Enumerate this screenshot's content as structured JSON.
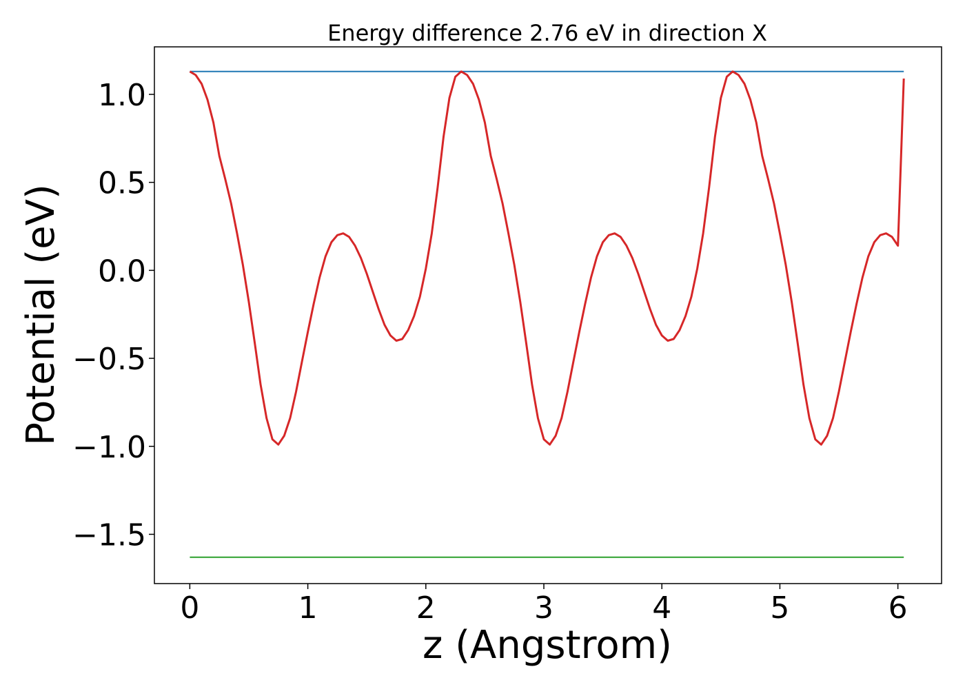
{
  "chart_data": {
    "type": "line",
    "title": "Energy difference 2.76 eV in direction X",
    "xlabel": "z (Angstrom)",
    "ylabel": "Potential (eV)",
    "xlim": [
      -0.3,
      6.37
    ],
    "ylim": [
      -1.78,
      1.27
    ],
    "x_ticks": [
      0,
      1,
      2,
      3,
      4,
      5,
      6
    ],
    "x_tick_labels": [
      "0",
      "1",
      "2",
      "3",
      "4",
      "5",
      "6"
    ],
    "y_ticks": [
      1.0,
      0.5,
      0.0,
      -0.5,
      -1.0,
      -1.5
    ],
    "y_tick_labels": [
      "1.0",
      "0.5",
      "0.0",
      "−0.5",
      "−1.0",
      "−1.5"
    ],
    "grid": false,
    "series": [
      {
        "color": "#1f77b4",
        "x": [
          0,
          6.05
        ],
        "y": [
          1.13,
          1.13
        ]
      },
      {
        "color": "#2ca02c",
        "x": [
          0,
          6.05
        ],
        "y": [
          -1.63,
          -1.63
        ]
      },
      {
        "color": "#d62728",
        "x": [
          0,
          0.05,
          0.1,
          0.15,
          0.2,
          0.25,
          0.3,
          0.35,
          0.4,
          0.45,
          0.5,
          0.55,
          0.6,
          0.65,
          0.7,
          0.75,
          0.8,
          0.85,
          0.9,
          0.95,
          1.0,
          1.05,
          1.1,
          1.15,
          1.2,
          1.25,
          1.3,
          1.35,
          1.4,
          1.45,
          1.5,
          1.55,
          1.6,
          1.65,
          1.7,
          1.75,
          1.8,
          1.85,
          1.9,
          1.95,
          2.0,
          2.05,
          2.1,
          2.15,
          2.2,
          2.25,
          2.3,
          2.35,
          2.4,
          2.45,
          2.5,
          2.55,
          2.6,
          2.65,
          2.7,
          2.75,
          2.8,
          2.85,
          2.9,
          2.95,
          3.0,
          3.05,
          3.1,
          3.15,
          3.2,
          3.25,
          3.3,
          3.35,
          3.4,
          3.45,
          3.5,
          3.55,
          3.6,
          3.65,
          3.7,
          3.75,
          3.8,
          3.85,
          3.9,
          3.95,
          4.0,
          4.05,
          4.1,
          4.15,
          4.2,
          4.25,
          4.3,
          4.35,
          4.4,
          4.45,
          4.5,
          4.55,
          4.6,
          4.65,
          4.7,
          4.75,
          4.8,
          4.85,
          4.9,
          4.95,
          5.0,
          5.05,
          5.1,
          5.15,
          5.2,
          5.25,
          5.3,
          5.35,
          5.4,
          5.45,
          5.5,
          5.55,
          5.6,
          5.65,
          5.7,
          5.75,
          5.8,
          5.85,
          5.9,
          5.95,
          6.0,
          6.05
        ],
        "y": [
          1.13,
          1.11,
          1.06,
          0.97,
          0.84,
          0.65,
          0.52,
          0.38,
          0.21,
          0.03,
          -0.18,
          -0.41,
          -0.65,
          -0.84,
          -0.96,
          -0.99,
          -0.94,
          -0.84,
          -0.69,
          -0.52,
          -0.35,
          -0.19,
          -0.04,
          0.08,
          0.16,
          0.2,
          0.21,
          0.19,
          0.14,
          0.07,
          -0.02,
          -0.12,
          -0.22,
          -0.31,
          -0.37,
          -0.4,
          -0.39,
          -0.34,
          -0.26,
          -0.15,
          0.01,
          0.21,
          0.47,
          0.76,
          0.98,
          1.1,
          1.13,
          1.11,
          1.06,
          0.97,
          0.84,
          0.65,
          0.52,
          0.38,
          0.21,
          0.03,
          -0.18,
          -0.41,
          -0.65,
          -0.84,
          -0.96,
          -0.99,
          -0.94,
          -0.84,
          -0.69,
          -0.52,
          -0.35,
          -0.19,
          -0.04,
          0.08,
          0.16,
          0.2,
          0.21,
          0.19,
          0.14,
          0.07,
          -0.02,
          -0.12,
          -0.22,
          -0.31,
          -0.37,
          -0.4,
          -0.39,
          -0.34,
          -0.26,
          -0.15,
          0.01,
          0.21,
          0.47,
          0.76,
          0.98,
          1.1,
          1.13,
          1.11,
          1.06,
          0.97,
          0.84,
          0.65,
          0.52,
          0.38,
          0.21,
          0.03,
          -0.18,
          -0.41,
          -0.65,
          -0.84,
          -0.96,
          -0.99,
          -0.94,
          -0.84,
          -0.69,
          -0.52,
          -0.35,
          -0.19,
          -0.04,
          0.08,
          0.16,
          0.2,
          0.21,
          0.19,
          0.14,
          1.09
        ]
      }
    ]
  }
}
